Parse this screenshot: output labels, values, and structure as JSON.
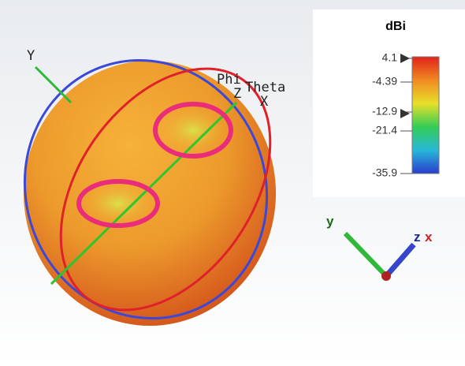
{
  "axes_labels": {
    "y": "Y",
    "phi": "Phi",
    "theta": "Theta",
    "z": "Z",
    "x": "X"
  },
  "legend": {
    "title": "dBi",
    "ticks": [
      4.1,
      -4.39,
      -12.9,
      -21.4,
      -35.9
    ]
  },
  "triad": {
    "y": "y",
    "z": "z",
    "x": "x"
  }
}
